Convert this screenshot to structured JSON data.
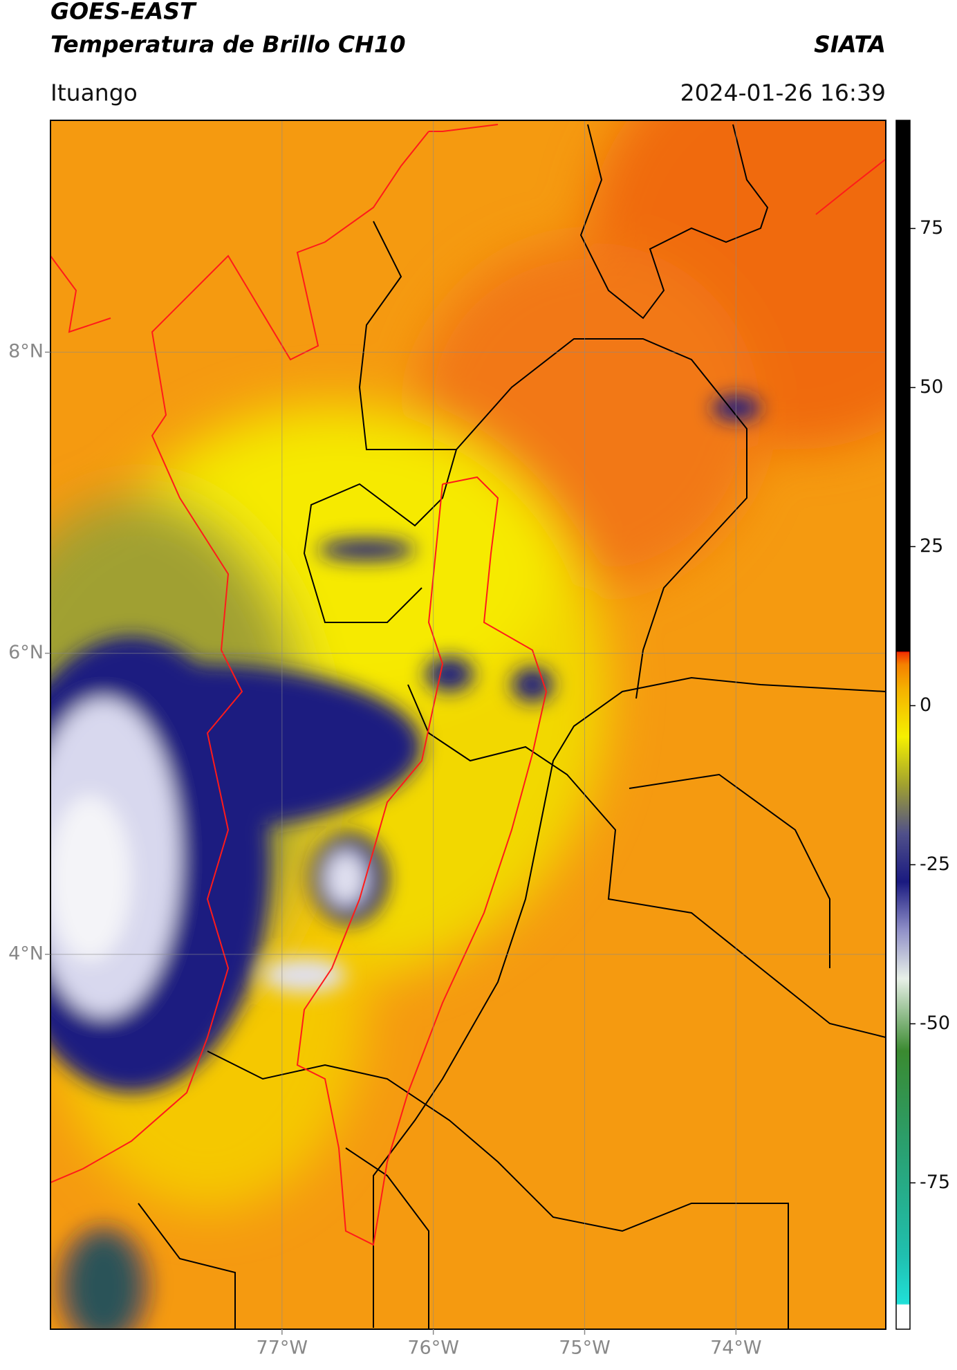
{
  "header": {
    "title": "GOES-EAST",
    "subtitle": "Temperatura de Brillo CH10",
    "source": "SIATA",
    "region": "Ituango",
    "datetime": "2024-01-26 16:39"
  },
  "map": {
    "xlim": [
      -78.53,
      -73.01
    ],
    "ylim": [
      1.51,
      9.54
    ],
    "xticks": [
      {
        "value": -77,
        "label": "77°W"
      },
      {
        "value": -76,
        "label": "76°W"
      },
      {
        "value": -75,
        "label": "75°W"
      },
      {
        "value": -74,
        "label": "74°W"
      }
    ],
    "yticks": [
      {
        "value": 8,
        "label": "8°N"
      },
      {
        "value": 6,
        "label": "6°N"
      },
      {
        "value": 4,
        "label": "4°N"
      }
    ],
    "grid": true
  },
  "colorbar": {
    "lim": [
      -98,
      92
    ],
    "ticks": [
      75,
      50,
      25,
      0,
      -25,
      -50,
      -75
    ]
  }
}
